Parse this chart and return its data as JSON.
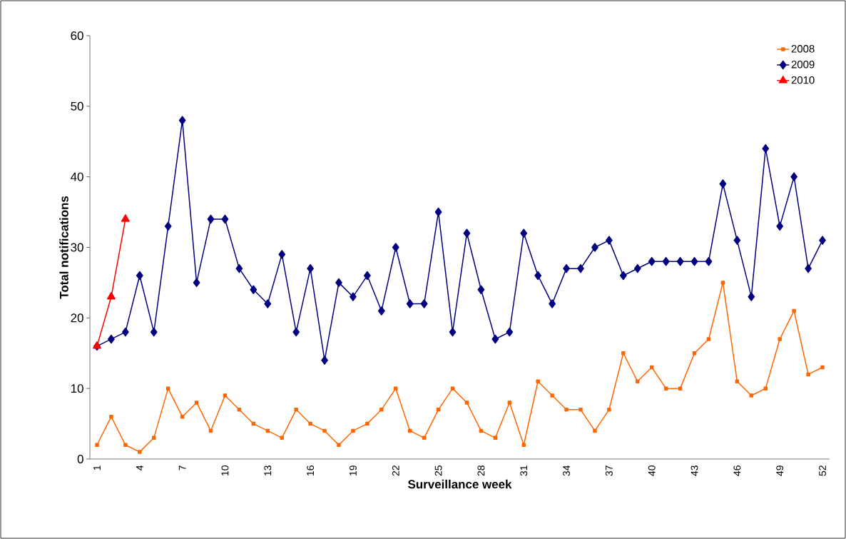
{
  "chart_data": {
    "type": "line",
    "xlabel": "Surveillance week",
    "ylabel": "Total notifications",
    "categories": [
      "1",
      null,
      null,
      "4",
      null,
      null,
      "7",
      null,
      null,
      "10",
      null,
      null,
      "13",
      null,
      null,
      "16",
      null,
      null,
      "19",
      null,
      null,
      "22",
      null,
      null,
      "25",
      null,
      null,
      "28",
      null,
      null,
      "31",
      null,
      null,
      "34",
      null,
      null,
      "37",
      null,
      null,
      "40",
      null,
      null,
      "43",
      null,
      null,
      "46",
      null,
      null,
      "49",
      null,
      null,
      "52"
    ],
    "series": [
      {
        "name": "2008",
        "color": "#ff6600",
        "marker": "square",
        "values": [
          2,
          6,
          2,
          1,
          3,
          10,
          6,
          8,
          4,
          9,
          7,
          5,
          4,
          3,
          7,
          5,
          4,
          2,
          4,
          5,
          7,
          10,
          4,
          3,
          7,
          10,
          8,
          4,
          3,
          8,
          2,
          11,
          9,
          7,
          7,
          4,
          7,
          15,
          11,
          13,
          10,
          10,
          15,
          17,
          25,
          11,
          9,
          10,
          17,
          21,
          12,
          13
        ]
      },
      {
        "name": "2009",
        "color": "#000080",
        "marker": "diamond",
        "values": [
          16,
          17,
          18,
          26,
          18,
          33,
          48,
          25,
          34,
          34,
          27,
          24,
          22,
          29,
          18,
          27,
          14,
          25,
          23,
          26,
          21,
          30,
          22,
          22,
          35,
          18,
          32,
          24,
          17,
          18,
          32,
          26,
          22,
          27,
          27,
          30,
          31,
          26,
          27,
          28,
          28,
          28,
          28,
          28,
          39,
          31,
          23,
          44,
          33,
          40,
          27,
          31
        ]
      },
      {
        "name": "2010",
        "color": "#ff0000",
        "marker": "triangle",
        "values": [
          16,
          23,
          34,
          null,
          null,
          null,
          null,
          null,
          null,
          null,
          null,
          null,
          null,
          null,
          null,
          null,
          null,
          null,
          null,
          null,
          null,
          null,
          null,
          null,
          null,
          null,
          null,
          null,
          null,
          null,
          null,
          null,
          null,
          null,
          null,
          null,
          null,
          null,
          null,
          null,
          null,
          null,
          null,
          null,
          null,
          null,
          null,
          null,
          null,
          null,
          null,
          null
        ]
      }
    ],
    "ylim": [
      0,
      60
    ],
    "yticks": [
      0,
      10,
      20,
      30,
      40,
      50,
      60
    ],
    "grid": false,
    "legend": "top right",
    "line_style": "solid"
  }
}
